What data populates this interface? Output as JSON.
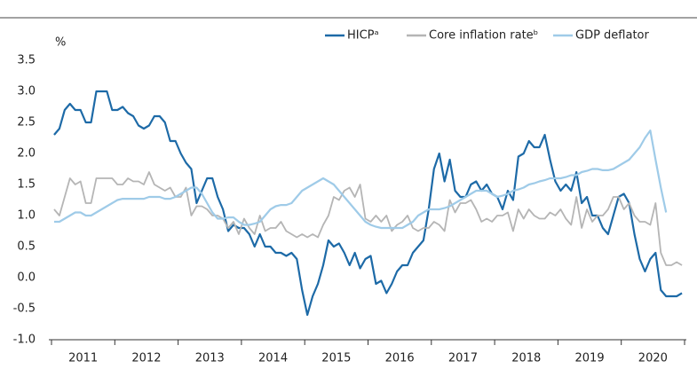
{
  "chart_data": {
    "type": "line",
    "y_label": "%",
    "legend": "top-right",
    "grid": false,
    "ylim": [
      -1.0,
      3.5
    ],
    "yticks": [
      {
        "value": -1,
        "label": "-1.0"
      },
      -0.5,
      {
        "value": 0,
        "label": "0.0"
      },
      0.5,
      {
        "value": 1,
        "label": "1.0"
      },
      1.5,
      {
        "value": 2,
        "label": "2.0"
      },
      2.5,
      {
        "value": 3,
        "label": "3.0"
      },
      3.5
    ],
    "categories": [
      null,
      null,
      null,
      null,
      null,
      null,
      "2011",
      null,
      null,
      null,
      null,
      null,
      null,
      null,
      null,
      null,
      null,
      null,
      "2012",
      null,
      null,
      null,
      null,
      null,
      null,
      null,
      null,
      null,
      null,
      null,
      "2013",
      null,
      null,
      null,
      null,
      null,
      null,
      null,
      null,
      null,
      null,
      null,
      "2014",
      null,
      null,
      null,
      null,
      null,
      null,
      null,
      null,
      null,
      null,
      null,
      "2015",
      null,
      null,
      null,
      null,
      null,
      null,
      null,
      null,
      null,
      null,
      null,
      "2016",
      null,
      null,
      null,
      null,
      null,
      null,
      null,
      null,
      null,
      null,
      null,
      "2017",
      null,
      null,
      null,
      null,
      null,
      null,
      null,
      null,
      null,
      null,
      null,
      "2018",
      null,
      null,
      null,
      null,
      null,
      null,
      null,
      null,
      null,
      null,
      null,
      "2019",
      null,
      null,
      null,
      null,
      null,
      null,
      null,
      null,
      null,
      null,
      null,
      "2020",
      null,
      null,
      null,
      null,
      null
    ],
    "series": [
      {
        "name": "HICPᵃ",
        "color": "#1d6aa7",
        "width": 2.2,
        "values": [
          2.3,
          2.4,
          2.7,
          2.8,
          2.7,
          2.7,
          2.5,
          2.5,
          3.0,
          3.0,
          3.0,
          2.7,
          2.7,
          2.75,
          2.65,
          2.6,
          2.45,
          2.4,
          2.45,
          2.6,
          2.6,
          2.5,
          2.2,
          2.2,
          2.0,
          1.85,
          1.75,
          1.2,
          1.4,
          1.6,
          1.6,
          1.3,
          1.1,
          0.75,
          0.85,
          0.8,
          0.8,
          0.7,
          0.5,
          0.7,
          0.5,
          0.5,
          0.4,
          0.4,
          0.35,
          0.4,
          0.3,
          -0.2,
          -0.6,
          -0.3,
          -0.1,
          0.2,
          0.6,
          0.5,
          0.55,
          0.4,
          0.2,
          0.4,
          0.15,
          0.3,
          0.35,
          -0.1,
          -0.05,
          -0.25,
          -0.1,
          0.1,
          0.2,
          0.2,
          0.4,
          0.5,
          0.6,
          1.1,
          1.75,
          2.0,
          1.55,
          1.9,
          1.4,
          1.3,
          1.3,
          1.5,
          1.55,
          1.4,
          1.5,
          1.35,
          1.3,
          1.1,
          1.4,
          1.25,
          1.95,
          2.0,
          2.2,
          2.1,
          2.1,
          2.3,
          1.9,
          1.55,
          1.4,
          1.5,
          1.4,
          1.7,
          1.2,
          1.3,
          1.0,
          1.0,
          0.8,
          0.7,
          1.0,
          1.3,
          1.35,
          1.2,
          0.7,
          0.3,
          0.1,
          0.3,
          0.4,
          -0.2,
          -0.3,
          -0.3,
          -0.3,
          -0.25
        ]
      },
      {
        "name": "Core inflation rateᵇ",
        "color": "#b5b5b5",
        "width": 1.8,
        "values": [
          1.1,
          1.0,
          1.3,
          1.6,
          1.5,
          1.55,
          1.2,
          1.2,
          1.6,
          1.6,
          1.6,
          1.6,
          1.5,
          1.5,
          1.6,
          1.55,
          1.55,
          1.5,
          1.7,
          1.5,
          1.45,
          1.4,
          1.45,
          1.3,
          1.3,
          1.45,
          1.0,
          1.15,
          1.15,
          1.1,
          1.0,
          1.0,
          0.95,
          0.8,
          0.9,
          0.7,
          0.95,
          0.8,
          0.7,
          1.0,
          0.75,
          0.8,
          0.8,
          0.9,
          0.75,
          0.7,
          0.65,
          0.7,
          0.65,
          0.7,
          0.65,
          0.85,
          1.0,
          1.3,
          1.25,
          1.4,
          1.45,
          1.3,
          1.5,
          0.95,
          0.9,
          1.0,
          0.9,
          1.0,
          0.75,
          0.85,
          0.9,
          1.0,
          0.8,
          0.75,
          0.8,
          0.8,
          0.9,
          0.85,
          0.75,
          1.25,
          1.05,
          1.2,
          1.2,
          1.25,
          1.1,
          0.9,
          0.95,
          0.9,
          1.0,
          1.0,
          1.05,
          0.75,
          1.1,
          0.95,
          1.1,
          1.0,
          0.95,
          0.95,
          1.05,
          1.0,
          1.1,
          0.95,
          0.85,
          1.3,
          0.8,
          1.1,
          0.9,
          1.0,
          1.0,
          1.1,
          1.3,
          1.3,
          1.1,
          1.2,
          1.0,
          0.9,
          0.9,
          0.85,
          1.2,
          0.4,
          0.2,
          0.2,
          0.25,
          0.2
        ]
      },
      {
        "name": "GDP deflator",
        "color": "#9fcbe8",
        "width": 2.2,
        "values": [
          0.9,
          0.9,
          0.95,
          1.0,
          1.05,
          1.05,
          1.0,
          1.0,
          1.05,
          1.1,
          1.15,
          1.2,
          1.25,
          1.27,
          1.27,
          1.27,
          1.27,
          1.27,
          1.3,
          1.3,
          1.3,
          1.27,
          1.27,
          1.3,
          1.35,
          1.4,
          1.45,
          1.45,
          1.35,
          1.2,
          1.05,
          0.95,
          0.95,
          0.97,
          0.97,
          0.9,
          0.85,
          0.85,
          0.87,
          0.9,
          1.0,
          1.1,
          1.15,
          1.17,
          1.17,
          1.2,
          1.3,
          1.4,
          1.45,
          1.5,
          1.55,
          1.6,
          1.55,
          1.5,
          1.4,
          1.3,
          1.2,
          1.1,
          1.0,
          0.9,
          0.85,
          0.82,
          0.8,
          0.8,
          0.8,
          0.8,
          0.8,
          0.85,
          0.9,
          1.0,
          1.05,
          1.1,
          1.1,
          1.1,
          1.12,
          1.15,
          1.2,
          1.25,
          1.3,
          1.35,
          1.4,
          1.4,
          1.4,
          1.35,
          1.3,
          1.32,
          1.35,
          1.4,
          1.42,
          1.45,
          1.5,
          1.52,
          1.55,
          1.57,
          1.6,
          1.6,
          1.6,
          1.62,
          1.65,
          1.65,
          1.7,
          1.72,
          1.75,
          1.75,
          1.73,
          1.73,
          1.75,
          1.8,
          1.85,
          1.9,
          2.0,
          2.1,
          2.25,
          2.37,
          1.9,
          1.45,
          1.05,
          null,
          null,
          null
        ]
      }
    ]
  }
}
